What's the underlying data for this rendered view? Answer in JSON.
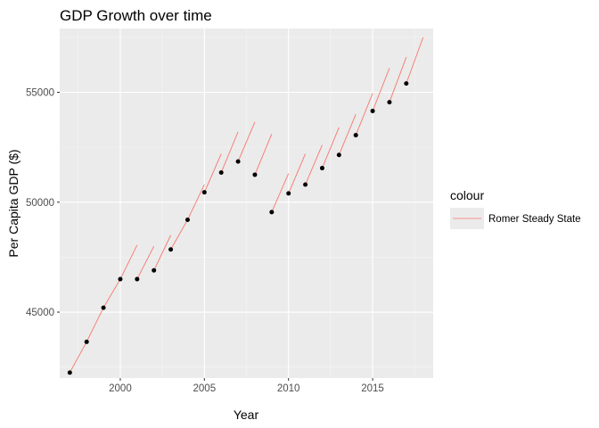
{
  "chart_data": {
    "type": "line",
    "title": "GDP Growth over time",
    "xlabel": "Year",
    "ylabel": "Per Capita GDP ($)",
    "xlim": [
      1996.4,
      2018.6
    ],
    "ylim": [
      42000,
      57900
    ],
    "x_ticks": [
      2000,
      2005,
      2010,
      2015
    ],
    "x_tick_labels": [
      "2000",
      "2005",
      "2010",
      "2015"
    ],
    "y_ticks": [
      45000,
      50000,
      55000
    ],
    "y_tick_labels": [
      "45000",
      "50000",
      "55000"
    ],
    "grid": true,
    "legend": {
      "title": "colour",
      "position": "right",
      "entries": [
        {
          "label": "Romer Steady State",
          "color": "#F8766D"
        }
      ]
    },
    "series": [
      {
        "name": "Romer Steady State",
        "kind": "line",
        "color": "#F8766D",
        "segments": [
          {
            "x": [
              1997,
              1998
            ],
            "y": [
              42250,
              43650
            ]
          },
          {
            "x": [
              1998,
              1999
            ],
            "y": [
              43650,
              45200
            ]
          },
          {
            "x": [
              1999,
              2000
            ],
            "y": [
              45200,
              46500
            ]
          },
          {
            "x": [
              2000,
              2001
            ],
            "y": [
              46500,
              48050
            ]
          },
          {
            "x": [
              2001,
              2002
            ],
            "y": [
              46500,
              48000
            ]
          },
          {
            "x": [
              2002,
              2003
            ],
            "y": [
              46900,
              48500
            ]
          },
          {
            "x": [
              2003,
              2004
            ],
            "y": [
              47850,
              49200
            ]
          },
          {
            "x": [
              2004,
              2005
            ],
            "y": [
              49200,
              50800
            ]
          },
          {
            "x": [
              2005,
              2006
            ],
            "y": [
              50450,
              52200
            ]
          },
          {
            "x": [
              2006,
              2007
            ],
            "y": [
              51350,
              53200
            ]
          },
          {
            "x": [
              2007,
              2008
            ],
            "y": [
              51850,
              53650
            ]
          },
          {
            "x": [
              2008,
              2009
            ],
            "y": [
              51250,
              53100
            ]
          },
          {
            "x": [
              2009,
              2010
            ],
            "y": [
              49550,
              51300
            ]
          },
          {
            "x": [
              2010,
              2011
            ],
            "y": [
              50400,
              52200
            ]
          },
          {
            "x": [
              2011,
              2012
            ],
            "y": [
              50800,
              52600
            ]
          },
          {
            "x": [
              2012,
              2013
            ],
            "y": [
              51550,
              53400
            ]
          },
          {
            "x": [
              2013,
              2014
            ],
            "y": [
              52150,
              54000
            ]
          },
          {
            "x": [
              2014,
              2015
            ],
            "y": [
              53050,
              54950
            ]
          },
          {
            "x": [
              2015,
              2016
            ],
            "y": [
              54150,
              56100
            ]
          },
          {
            "x": [
              2016,
              2017
            ],
            "y": [
              54550,
              56600
            ]
          },
          {
            "x": [
              2017,
              2018
            ],
            "y": [
              55400,
              57500
            ]
          }
        ]
      },
      {
        "kind": "points",
        "color": "#000000",
        "x": [
          1997,
          1998,
          1999,
          2000,
          2001,
          2002,
          2003,
          2004,
          2005,
          2006,
          2007,
          2008,
          2009,
          2010,
          2011,
          2012,
          2013,
          2014,
          2015,
          2016,
          2017
        ],
        "y": [
          42250,
          43650,
          45200,
          46500,
          46500,
          46900,
          47850,
          49200,
          50450,
          51350,
          51850,
          51250,
          49550,
          50400,
          50800,
          51550,
          52150,
          53050,
          54150,
          54550,
          55400
        ]
      }
    ]
  }
}
